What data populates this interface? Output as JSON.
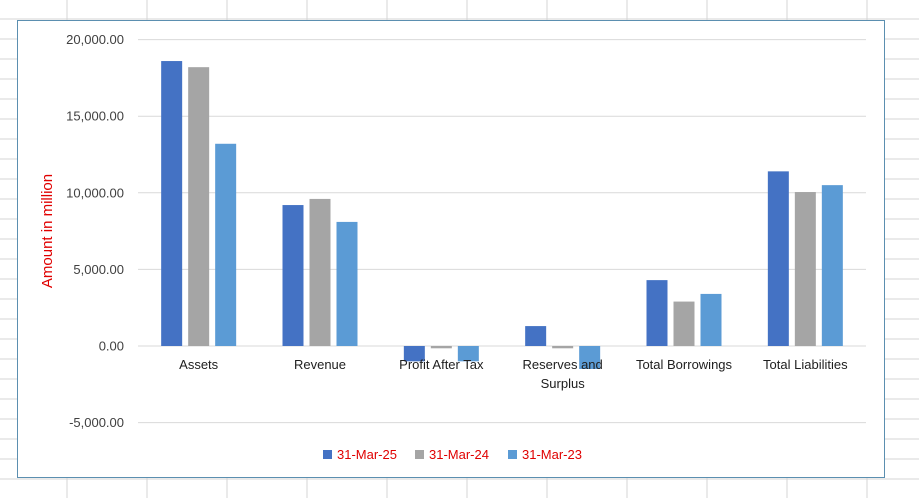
{
  "chart_data": {
    "type": "bar",
    "categories": [
      [
        "Assets"
      ],
      [
        "Revenue"
      ],
      [
        "Profit After Tax"
      ],
      [
        "Reserves and",
        "Surplus"
      ],
      [
        "Total Borrowings"
      ],
      [
        "Total Liabilities"
      ]
    ],
    "series": [
      {
        "name": "31-Mar-25",
        "color": "#4472c4",
        "values": [
          18600,
          9200,
          -1000,
          1300,
          4300,
          11400
        ]
      },
      {
        "name": "31-Mar-24",
        "color": "#a5a5a5",
        "values": [
          18200,
          9600,
          -150,
          -150,
          2900,
          10050
        ]
      },
      {
        "name": "31-Mar-23",
        "color": "#5b9bd5",
        "values": [
          13200,
          8100,
          -1000,
          -1500,
          3400,
          10500
        ]
      }
    ],
    "ylabel": "Amount in million",
    "ylabel_color": "#e00000",
    "legend_text_color": "#e00000",
    "ylim": [
      -5000,
      20000
    ],
    "yticks": [
      20000,
      15000,
      10000,
      5000,
      0,
      -5000
    ],
    "ytick_labels": [
      "20,000.00",
      "15,000.00",
      "10,000.00",
      "5,000.00",
      "0.00",
      "-5,000.00"
    ],
    "grid": true,
    "legend_position": "bottom"
  }
}
